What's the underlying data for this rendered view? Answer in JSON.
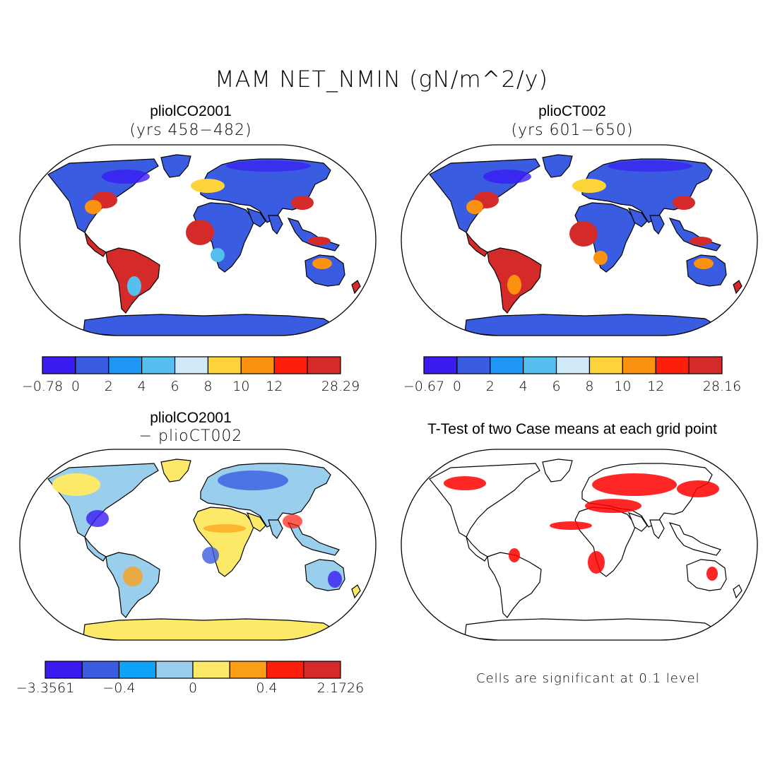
{
  "title": "MAM NET_NMIN (gN/m^2/y)",
  "panels": [
    {
      "title": "pliolCO2001",
      "subtitle": "(yrs 458−482)",
      "colorbar": "base"
    },
    {
      "title": "plioCT002",
      "subtitle": "(yrs 601−650)",
      "colorbar": "base2"
    },
    {
      "title": "pliolCO2001",
      "subtitle": "− plioCT002",
      "colorbar": "diff"
    },
    {
      "title": "T-Test of two Case means at each grid point",
      "subtitle": "",
      "note": "Cells are significant at 0.1 level"
    }
  ],
  "colorbars": {
    "base": {
      "colors": [
        "#3a1cf2",
        "#3a5ce0",
        "#1e96f5",
        "#55c0f0",
        "#cfe9f6",
        "#fdd33a",
        "#fb9210",
        "#fe1e0c",
        "#d42a2a"
      ],
      "labels": [
        "−0.78",
        "0",
        "2",
        "4",
        "6",
        "8",
        "10",
        "12",
        "28.29"
      ]
    },
    "base2": {
      "colors": [
        "#3a1cf2",
        "#3a5ce0",
        "#1e96f5",
        "#55c0f0",
        "#cfe9f6",
        "#fdd33a",
        "#fb9210",
        "#fe1e0c",
        "#d42a2a"
      ],
      "labels": [
        "−0.67",
        "0",
        "2",
        "4",
        "6",
        "8",
        "10",
        "12",
        "28.16"
      ]
    },
    "diff": {
      "colors": [
        "#3a1cf2",
        "#3a5ce0",
        "#10a2f7",
        "#99cfed",
        "#fde968",
        "#fba016",
        "#fe1e0c",
        "#d42a2a"
      ],
      "labels": [
        "−3.3561",
        "−0.4",
        "0",
        "0.4",
        "2.1726"
      ]
    }
  },
  "legend_colors": {
    "land_low": "#3a5ce0",
    "land_high": "#d42a2a",
    "diff_pos": "#fde968",
    "significant": "#ff0000"
  }
}
